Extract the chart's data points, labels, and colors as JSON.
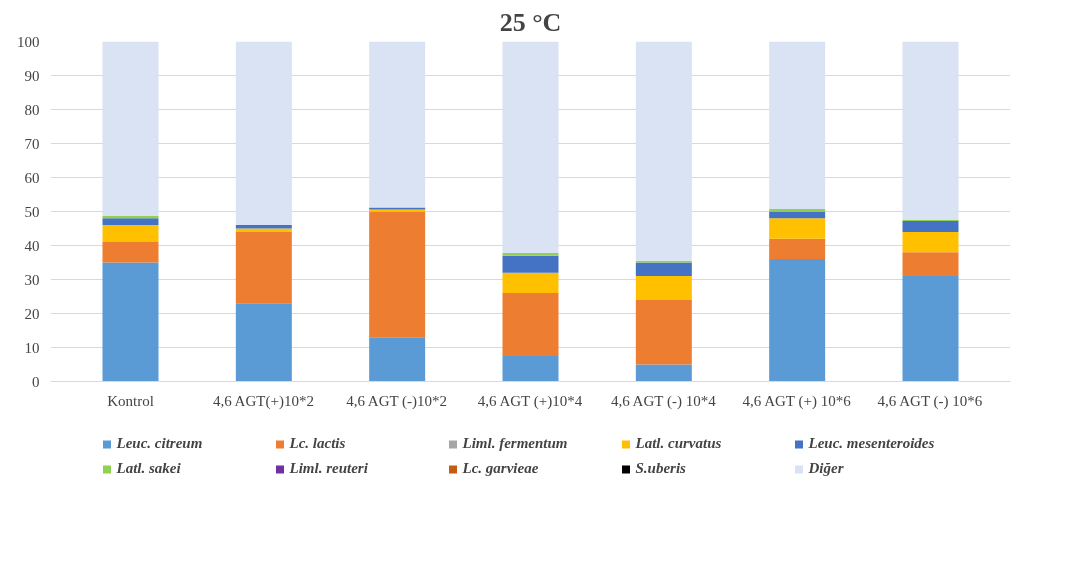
{
  "chart_data": {
    "type": "bar",
    "stacked": true,
    "title": "25 °C",
    "categories": [
      "Kontrol",
      "4,6 AGT(+)10*2",
      "4,6 AGT (-)10*2",
      "4,6 AGT (+)10*4",
      "4,6 AGT (-) 10*4",
      "4,6 AGT (+) 10*6",
      "4,6 AGT (-) 10*6"
    ],
    "ylim": [
      0,
      100
    ],
    "yticks": [
      0,
      10,
      20,
      30,
      40,
      50,
      60,
      70,
      80,
      90,
      100
    ],
    "grid": "y",
    "legend": "bottom",
    "series": [
      {
        "name": "Leuc. citreum",
        "color": "#5b9bd5",
        "values": [
          35,
          23,
          13,
          7.5,
          5,
          36,
          31
        ]
      },
      {
        "name": "Lc. lactis",
        "color": "#ed7d31",
        "values": [
          6,
          21,
          37,
          18.5,
          19,
          6,
          7
        ]
      },
      {
        "name": "Liml. fermentum",
        "color": "#a5a5a5",
        "values": [
          0,
          0,
          0,
          0,
          0,
          0,
          0
        ]
      },
      {
        "name": "Latl. curvatus",
        "color": "#ffc000",
        "values": [
          5,
          1,
          0.6,
          6,
          7,
          6,
          6
        ]
      },
      {
        "name": "Leuc. mesenteroides",
        "color": "#4472c4",
        "values": [
          2,
          1,
          0.6,
          5,
          4,
          2,
          3.2
        ]
      },
      {
        "name": "Latl. sakei",
        "color": "#92d050",
        "values": [
          0.7,
          0,
          0,
          0.8,
          0.5,
          0.7,
          0.3
        ]
      },
      {
        "name": "Liml. reuteri",
        "color": "#7030a0",
        "values": [
          0,
          0,
          0,
          0,
          0,
          0,
          0
        ]
      },
      {
        "name": "Lc. garvieae",
        "color": "#c55a11",
        "values": [
          0,
          0,
          0,
          0,
          0,
          0,
          0
        ]
      },
      {
        "name": "S.uberis",
        "color": "#000000",
        "values": [
          0,
          0,
          0,
          0,
          0,
          0,
          0
        ]
      },
      {
        "name": "Diğer",
        "color": "#dae3f3",
        "values": [
          51.3,
          54,
          48.8,
          62.2,
          64.5,
          49.3,
          52.5
        ]
      }
    ]
  }
}
